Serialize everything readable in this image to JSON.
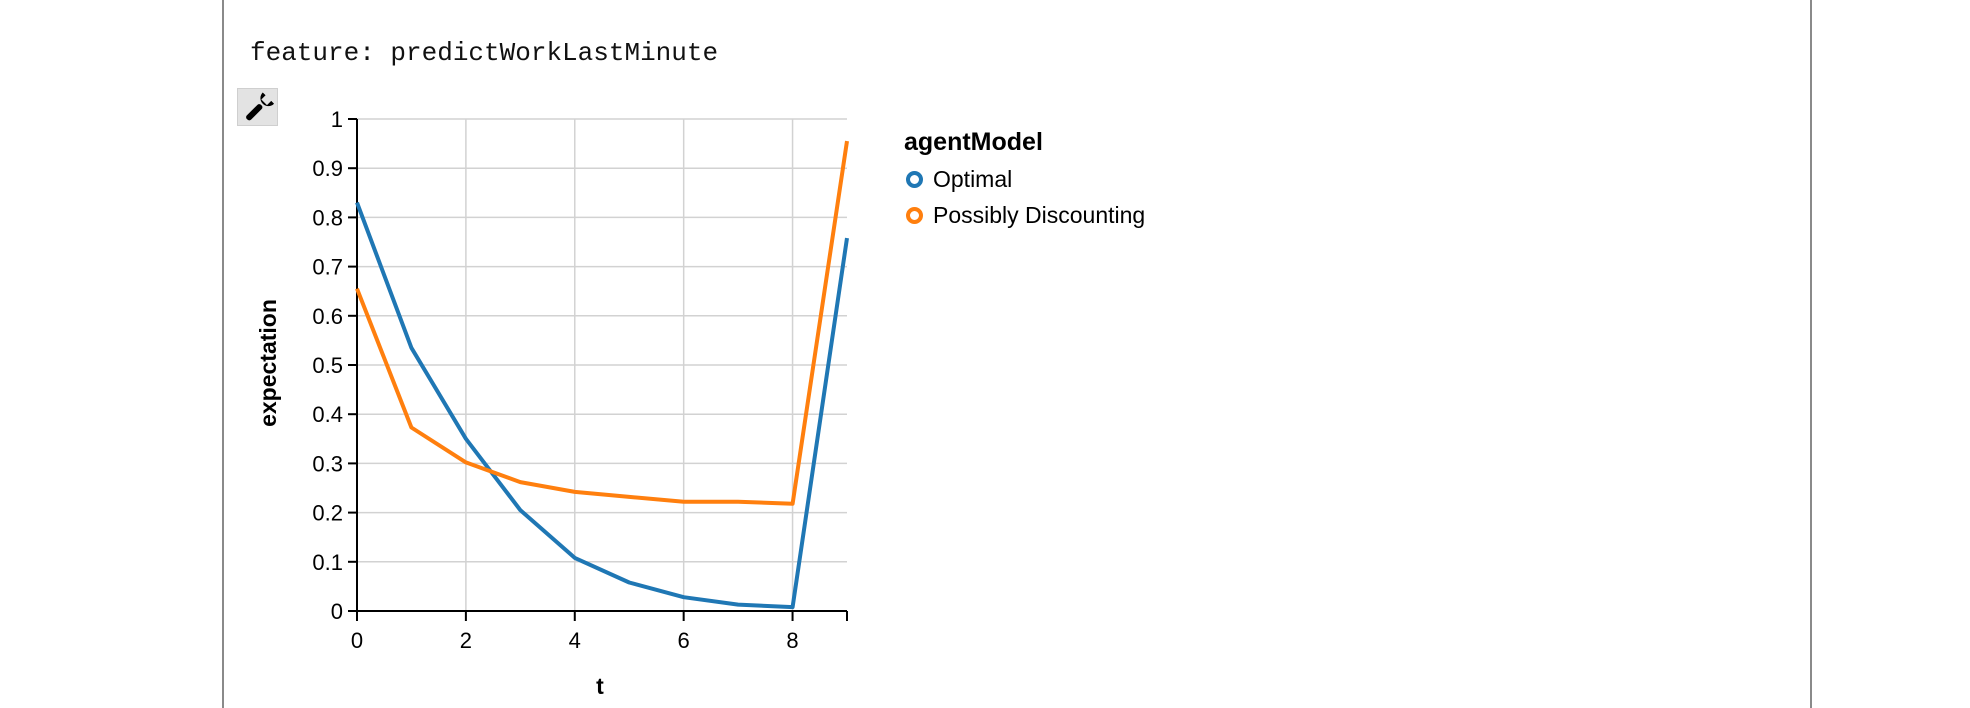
{
  "feature_text": "feature: predictWorkLastMinute",
  "tools_icon": "wrench-icon",
  "legend": {
    "title": "agentModel",
    "items": [
      {
        "label": "Optimal",
        "color": "#1f77b4"
      },
      {
        "label": "Possibly Discounting",
        "color": "#ff7f0e"
      }
    ]
  },
  "chart_data": {
    "type": "line",
    "xlabel": "t",
    "ylabel": "expectation",
    "xlim": [
      0,
      9
    ],
    "ylim": [
      0,
      1
    ],
    "xticks": [
      0,
      2,
      4,
      6,
      8
    ],
    "yticks": [
      0,
      0.1,
      0.2,
      0.3,
      0.4,
      0.5,
      0.6,
      0.7,
      0.8,
      0.9,
      1
    ],
    "grid": true,
    "legend_position": "right",
    "x": [
      0,
      1,
      2,
      3,
      4,
      5,
      6,
      7,
      8,
      9
    ],
    "series": [
      {
        "name": "Optimal",
        "color": "#1f77b4",
        "values": [
          0.83,
          0.535,
          0.35,
          0.205,
          0.108,
          0.058,
          0.028,
          0.013,
          0.008,
          0.758
        ]
      },
      {
        "name": "Possibly Discounting",
        "color": "#ff7f0e",
        "values": [
          0.655,
          0.373,
          0.302,
          0.262,
          0.242,
          0.232,
          0.222,
          0.222,
          0.218,
          0.955
        ]
      }
    ]
  }
}
